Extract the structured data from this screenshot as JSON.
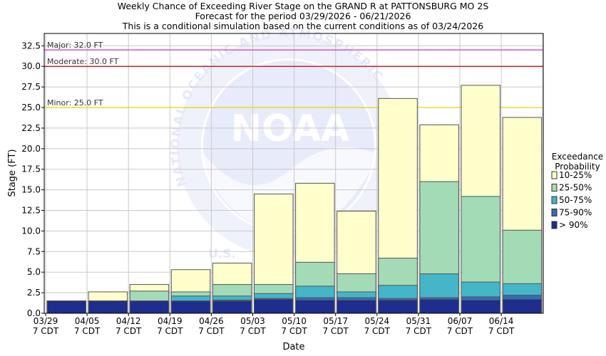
{
  "chart_data": {
    "type": "bar",
    "title_lines": [
      "Weekly Chance of Exceeding River Stage on the GRAND R at PATTONSBURG MO 2S",
      "Forecast for the period 03/29/2026 - 06/21/2026",
      "This is a conditional simulation based on the current conditions as of 03/24/2026"
    ],
    "xlabel": "Date",
    "ylabel": "Stage (FT)",
    "ylim": [
      0,
      34
    ],
    "y_ticks": [
      "0.0",
      "2.5",
      "5.0",
      "7.5",
      "10.0",
      "12.5",
      "15.0",
      "17.5",
      "20.0",
      "22.5",
      "25.0",
      "27.5",
      "30.0",
      "32.5"
    ],
    "x_ticks": [
      {
        "date": "03/29",
        "tz": "7 CDT"
      },
      {
        "date": "04/05",
        "tz": "7 CDT"
      },
      {
        "date": "04/12",
        "tz": "7 CDT"
      },
      {
        "date": "04/19",
        "tz": "7 CDT"
      },
      {
        "date": "04/26",
        "tz": "7 CDT"
      },
      {
        "date": "05/03",
        "tz": "7 CDT"
      },
      {
        "date": "05/10",
        "tz": "7 CDT"
      },
      {
        "date": "05/17",
        "tz": "7 CDT"
      },
      {
        "date": "05/24",
        "tz": "7 CDT"
      },
      {
        "date": "05/31",
        "tz": "7 CDT"
      },
      {
        "date": "06/07",
        "tz": "7 CDT"
      },
      {
        "date": "06/14",
        "tz": "7 CDT"
      }
    ],
    "thresholds": [
      {
        "label": "Major: 32.0 FT",
        "value": 32.0,
        "color": "#cc33cc"
      },
      {
        "label": "Moderate: 30.0 FT",
        "value": 30.0,
        "color": "#cc0000"
      },
      {
        "label": "Minor: 25.0 FT",
        "value": 25.0,
        "color": "#e6d400"
      }
    ],
    "legend": {
      "title_lines": [
        "Exceedance",
        "Probability"
      ],
      "placement": "right"
    },
    "series": [
      {
        "name": "> 90%",
        "color": "#1f2d8c",
        "values": [
          1.5,
          1.5,
          1.5,
          1.5,
          1.5,
          1.7,
          1.6,
          1.6,
          1.6,
          1.7,
          1.6,
          1.7
        ]
      },
      {
        "name": "75-90%",
        "color": "#2f6fb2",
        "values": [
          1.5,
          1.5,
          1.5,
          1.5,
          1.6,
          1.8,
          1.9,
          1.9,
          1.8,
          1.9,
          2.0,
          2.2
        ]
      },
      {
        "name": "50-75%",
        "color": "#45b5c8",
        "values": [
          1.5,
          1.5,
          1.5,
          2.1,
          2.1,
          2.4,
          3.3,
          2.6,
          3.4,
          4.8,
          3.8,
          3.6
        ]
      },
      {
        "name": "25-50%",
        "color": "#a3dbb7",
        "values": [
          1.5,
          1.5,
          2.7,
          2.6,
          3.5,
          3.5,
          6.2,
          4.8,
          6.7,
          16.0,
          14.2,
          10.1
        ]
      },
      {
        "name": "10-25%",
        "color": "#ffffcc",
        "values": [
          1.5,
          2.6,
          3.5,
          5.3,
          6.1,
          14.5,
          15.8,
          12.4,
          26.1,
          22.9,
          27.7,
          23.8
        ]
      }
    ],
    "watermark": {
      "logo_text": "NOAA",
      "ring_text_top": "NATIONAL OCEANIC AND ATMOSPHERIC",
      "ring_text_bottom": "U.S."
    }
  }
}
